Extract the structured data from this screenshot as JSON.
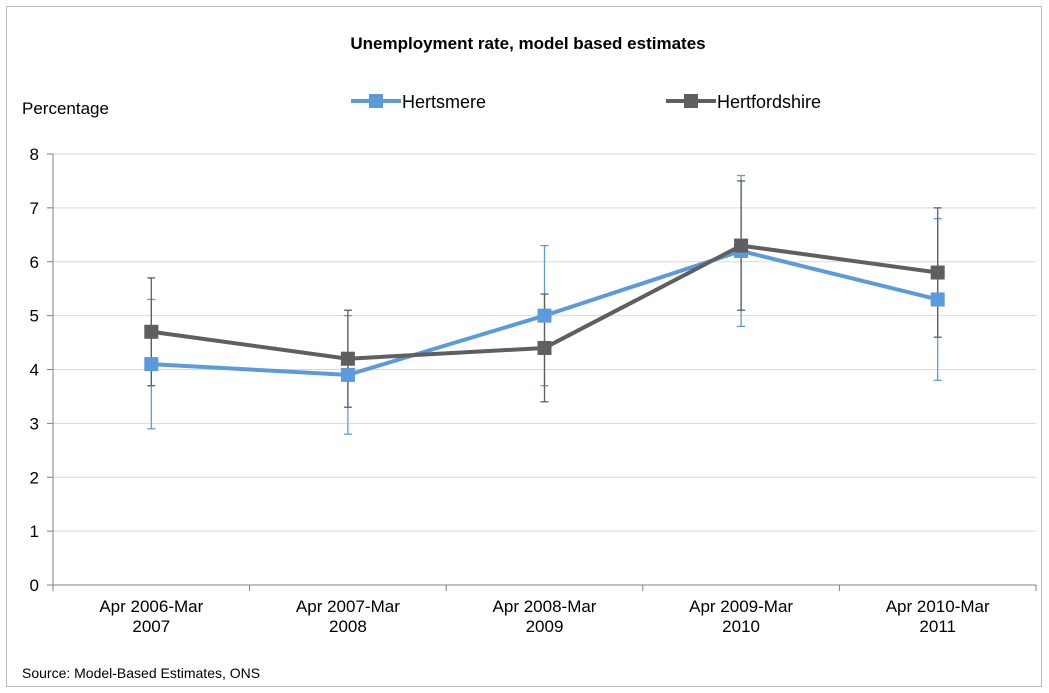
{
  "chart_data": {
    "type": "line",
    "title": "Unemployment rate, model based estimates",
    "ylabel": "Percentage",
    "xlabel": "",
    "ylim": [
      0,
      8
    ],
    "yticks": [
      0,
      1,
      2,
      3,
      4,
      5,
      6,
      7,
      8
    ],
    "grid": true,
    "legend_position": "top",
    "categories": [
      [
        "Apr 2006-Mar",
        "2007"
      ],
      [
        "Apr 2007-Mar",
        "2008"
      ],
      [
        "Apr 2008-Mar",
        "2009"
      ],
      [
        "Apr 2009-Mar",
        "2010"
      ],
      [
        "Apr 2010-Mar",
        "2011"
      ]
    ],
    "series": [
      {
        "name": "Hertsmere",
        "color": "#5b9bdb",
        "marker": "square",
        "values": [
          4.1,
          3.9,
          5.0,
          6.2,
          5.3
        ],
        "error_low": [
          2.9,
          2.8,
          3.7,
          4.8,
          3.8
        ],
        "error_high": [
          5.3,
          5.0,
          6.3,
          7.6,
          6.8
        ]
      },
      {
        "name": "Hertfordshire",
        "color": "#5f5f5f",
        "marker": "square",
        "values": [
          4.7,
          4.2,
          4.4,
          6.3,
          5.8
        ],
        "error_low": [
          3.7,
          3.3,
          3.4,
          5.1,
          4.6
        ],
        "error_high": [
          5.7,
          5.1,
          5.4,
          7.5,
          7.0
        ]
      }
    ],
    "source": "Source:  Model-Based  Estimates,  ONS"
  }
}
